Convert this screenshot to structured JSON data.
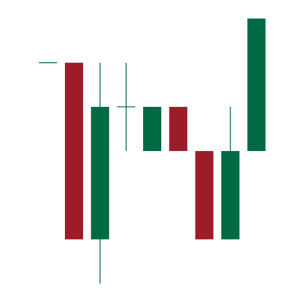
{
  "chart_data": {
    "type": "candlestick",
    "colors": {
      "up": "#006a42",
      "down": "#9c1c28"
    },
    "candles": [
      {
        "open": 100,
        "high": 100,
        "low": 100,
        "close": 100
      },
      {
        "open": 100,
        "high": 100,
        "low": 60,
        "close": 60
      },
      {
        "open": 60,
        "high": 100,
        "low": 50,
        "close": 90
      },
      {
        "open": 90,
        "high": 100,
        "low": 80,
        "close": 90
      },
      {
        "open": 80,
        "high": 90,
        "low": 80,
        "close": 90
      },
      {
        "open": 90,
        "high": 90,
        "low": 80,
        "close": 80
      },
      {
        "open": 80,
        "high": 80,
        "low": 60,
        "close": 60
      },
      {
        "open": 60,
        "high": 90,
        "low": 60,
        "close": 80
      },
      {
        "open": 80,
        "high": 110,
        "low": 80,
        "close": 110
      }
    ],
    "ylim": [
      47.4,
      114.2
    ],
    "grid": false,
    "legend": false,
    "axes_visible": false
  }
}
